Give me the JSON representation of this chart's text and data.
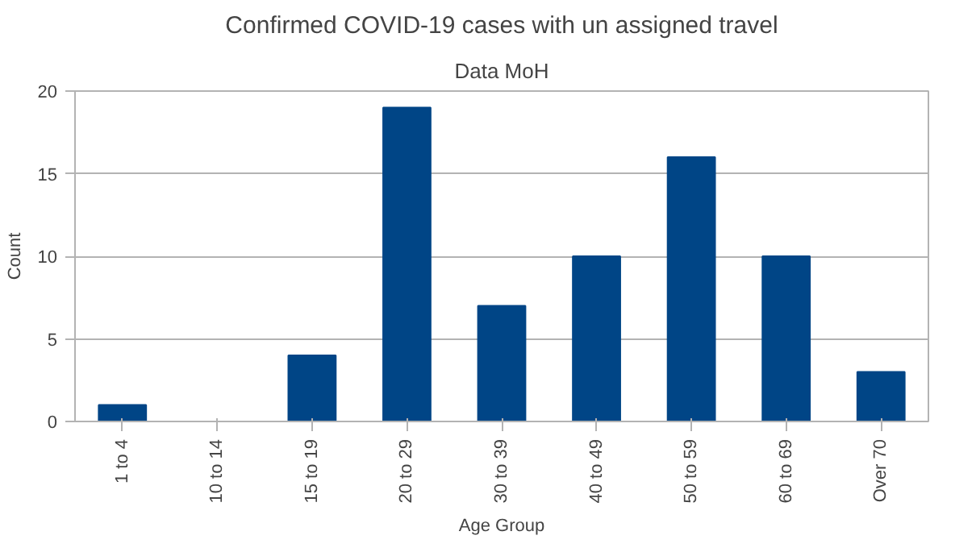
{
  "chart_data": {
    "type": "bar",
    "title": "Confirmed COVID-19 cases with un assigned travel",
    "subtitle": "Data MoH",
    "xlabel": "Age Group",
    "ylabel": "Count",
    "categories": [
      "1 to 4",
      "10 to 14",
      "15 to 19",
      "20 to 29",
      "30 to 39",
      "40 to 49",
      "50 to 59",
      "60 to 69",
      "Over 70"
    ],
    "values": [
      1,
      0,
      4,
      19,
      7,
      10,
      16,
      10,
      3
    ],
    "color": "#004586",
    "ylim": [
      0,
      20
    ],
    "yticks": [
      0,
      5,
      10,
      15,
      20
    ],
    "grid": "y"
  }
}
